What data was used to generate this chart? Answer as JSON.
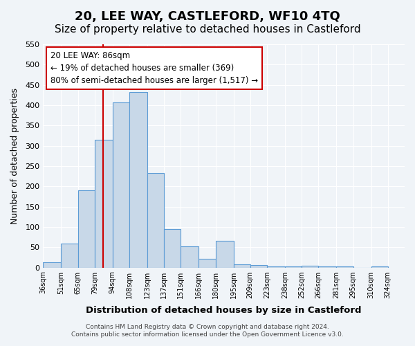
{
  "title": "20, LEE WAY, CASTLEFORD, WF10 4TQ",
  "subtitle": "Size of property relative to detached houses in Castleford",
  "xlabel": "Distribution of detached houses by size in Castleford",
  "ylabel": "Number of detached properties",
  "bin_labels": [
    "36sqm",
    "51sqm",
    "65sqm",
    "79sqm",
    "94sqm",
    "108sqm",
    "123sqm",
    "137sqm",
    "151sqm",
    "166sqm",
    "180sqm",
    "195sqm",
    "209sqm",
    "223sqm",
    "238sqm",
    "252sqm",
    "266sqm",
    "281sqm",
    "295sqm",
    "310sqm",
    "324sqm"
  ],
  "bar_values": [
    12,
    59,
    190,
    315,
    407,
    432,
    233,
    94,
    52,
    22,
    65,
    8,
    6,
    2,
    2,
    4,
    2,
    2,
    0,
    2
  ],
  "bin_edges": [
    36,
    51,
    65,
    79,
    94,
    108,
    123,
    137,
    151,
    166,
    180,
    195,
    209,
    223,
    238,
    252,
    266,
    281,
    295,
    310,
    324
  ],
  "bar_color": "#c8d8e8",
  "bar_edge_color": "#5b9bd5",
  "red_line_x": 86,
  "annotation_title": "20 LEE WAY: 86sqm",
  "annotation_line1": "← 19% of detached houses are smaller (369)",
  "annotation_line2": "80% of semi-detached houses are larger (1,517) →",
  "annotation_box_color": "#ffffff",
  "annotation_box_edge": "#cc0000",
  "ylim": [
    0,
    550
  ],
  "yticks": [
    0,
    50,
    100,
    150,
    200,
    250,
    300,
    350,
    400,
    450,
    500,
    550
  ],
  "footer_line1": "Contains HM Land Registry data © Crown copyright and database right 2024.",
  "footer_line2": "Contains public sector information licensed under the Open Government Licence v3.0.",
  "bg_color": "#f0f4f8",
  "grid_color": "#ffffff",
  "title_fontsize": 13,
  "subtitle_fontsize": 11
}
